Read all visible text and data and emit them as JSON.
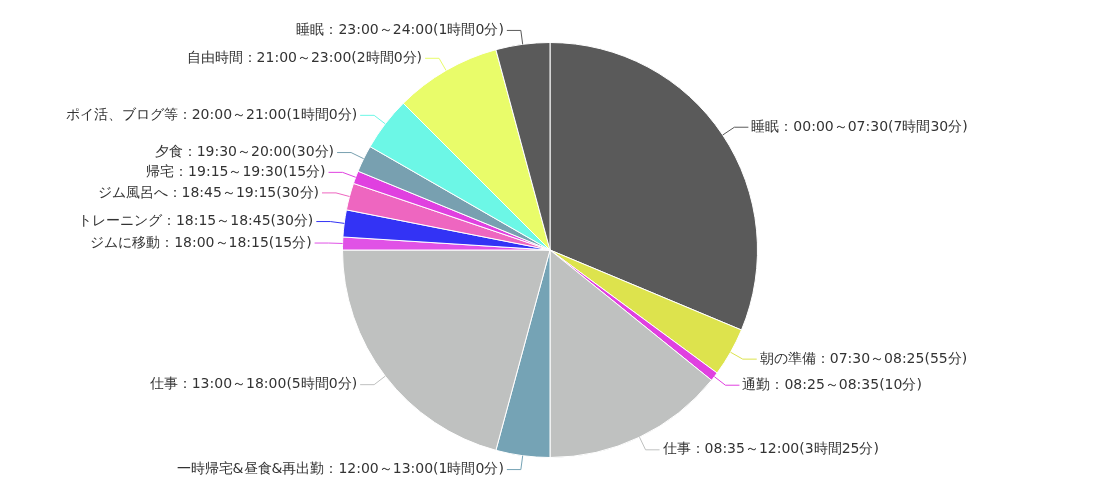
{
  "chart_data": {
    "type": "pie",
    "legend": false,
    "categories": [
      "睡眠：00:00～07:30(7時間30分)",
      "朝の準備：07:30～08:25(55分)",
      "通勤：08:25～08:35(10分)",
      "仕事：08:35～12:00(3時間25分)",
      "一時帰宅&昼食&再出勤：12:00～13:00(1時間0分)",
      "仕事：13:00～18:00(5時間0分)",
      "ジムに移動：18:00～18:15(15分)",
      "トレーニング：18:15～18:45(30分)",
      "ジム風呂へ：18:45～19:15(30分)",
      "帰宅：19:15～19:30(15分)",
      "夕食：19:30～20:00(30分)",
      "ポイ活、ブログ等：20:00～21:00(1時間0分)",
      "自由時間：21:00～23:00(2時間0分)",
      "睡眠：23:00～24:00(1時間0分)"
    ],
    "values": [
      31.3,
      3.8,
      0.7,
      14.2,
      4.2,
      20.8,
      1.0,
      2.1,
      2.1,
      1.0,
      2.1,
      4.2,
      8.3,
      4.2
    ],
    "colors": [
      "#5a5a5a",
      "#dde34d",
      "#e040e0",
      "#bfc1c0",
      "#75a3b5",
      "#bfc1c0",
      "#e052e6",
      "#3333f5",
      "#ee66c0",
      "#e040e0",
      "#78a0b0",
      "#6cf7e6",
      "#e9fc6a",
      "#5a5a5a"
    ]
  }
}
